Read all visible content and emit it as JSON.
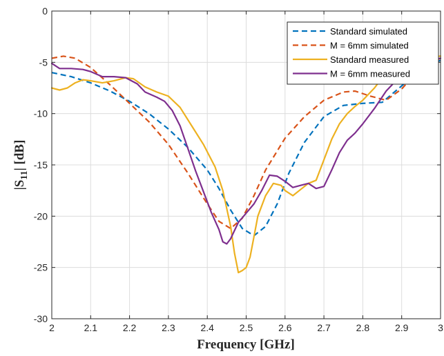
{
  "chart_data": {
    "type": "line",
    "xlabel": "Frequency [GHz]",
    "ylabel_main": "|S",
    "ylabel_sub": "11",
    "ylabel_tail": "| [dB]",
    "xlim": [
      2,
      3
    ],
    "ylim": [
      -30,
      0
    ],
    "xticks": [
      2,
      2.1,
      2.2,
      2.3,
      2.4,
      2.5,
      2.6,
      2.7,
      2.8,
      2.9,
      3
    ],
    "yticks": [
      0,
      -5,
      -10,
      -15,
      -20,
      -25,
      -30
    ],
    "grid": true,
    "legend_position": "top-right",
    "series": [
      {
        "name": "Standard simulated",
        "color": "#0072BD",
        "style": "dashed",
        "x": [
          2.0,
          2.05,
          2.1,
          2.15,
          2.2,
          2.25,
          2.3,
          2.35,
          2.4,
          2.43,
          2.46,
          2.49,
          2.52,
          2.55,
          2.58,
          2.61,
          2.65,
          2.7,
          2.75,
          2.8,
          2.85,
          2.9,
          2.95,
          3.0
        ],
        "y": [
          -6.0,
          -6.4,
          -7.0,
          -7.8,
          -8.8,
          -10.0,
          -11.5,
          -13.3,
          -15.5,
          -17.3,
          -19.4,
          -21.2,
          -21.9,
          -21.0,
          -18.8,
          -15.8,
          -12.8,
          -10.3,
          -9.2,
          -9.0,
          -8.9,
          -7.3,
          -5.7,
          -4.8
        ]
      },
      {
        "name": "M = 6mm simulated",
        "color": "#D95319",
        "style": "dashed",
        "x": [
          2.0,
          2.03,
          2.06,
          2.1,
          2.15,
          2.2,
          2.25,
          2.3,
          2.35,
          2.4,
          2.43,
          2.46,
          2.49,
          2.52,
          2.55,
          2.6,
          2.65,
          2.7,
          2.75,
          2.78,
          2.82,
          2.86,
          2.9,
          2.95,
          3.0
        ],
        "y": [
          -4.6,
          -4.4,
          -4.6,
          -5.5,
          -7.2,
          -9.0,
          -10.8,
          -13.0,
          -15.8,
          -18.8,
          -20.5,
          -21.2,
          -20.2,
          -18.0,
          -15.5,
          -12.4,
          -10.3,
          -8.7,
          -7.9,
          -7.8,
          -8.3,
          -8.7,
          -7.6,
          -5.5,
          -4.6
        ]
      },
      {
        "name": "Standard measured",
        "color": "#EDB120",
        "style": "solid",
        "x": [
          2.0,
          2.02,
          2.04,
          2.06,
          2.08,
          2.1,
          2.13,
          2.16,
          2.19,
          2.21,
          2.24,
          2.27,
          2.3,
          2.33,
          2.36,
          2.39,
          2.42,
          2.44,
          2.46,
          2.47,
          2.48,
          2.49,
          2.5,
          2.51,
          2.52,
          2.53,
          2.55,
          2.57,
          2.59,
          2.6,
          2.62,
          2.64,
          2.66,
          2.68,
          2.7,
          2.72,
          2.74,
          2.76,
          2.78,
          2.8,
          2.83,
          2.86,
          2.9,
          2.95,
          3.0
        ],
        "y": [
          -7.5,
          -7.7,
          -7.5,
          -7.0,
          -6.7,
          -6.8,
          -7.0,
          -6.8,
          -6.5,
          -6.6,
          -7.4,
          -7.9,
          -8.3,
          -9.4,
          -11.2,
          -13.0,
          -15.2,
          -17.5,
          -21.0,
          -23.6,
          -25.5,
          -25.3,
          -25.0,
          -24.0,
          -22.0,
          -20.0,
          -18.0,
          -16.8,
          -17.0,
          -17.5,
          -18.0,
          -17.4,
          -16.8,
          -16.5,
          -14.5,
          -12.5,
          -11.0,
          -10.0,
          -9.3,
          -8.7,
          -7.5,
          -6.0,
          -5.0,
          -4.5,
          -4.4
        ]
      },
      {
        "name": "M = 6mm measured",
        "color": "#7E2F8E",
        "style": "solid",
        "x": [
          2.0,
          2.02,
          2.05,
          2.08,
          2.1,
          2.13,
          2.16,
          2.19,
          2.22,
          2.24,
          2.27,
          2.29,
          2.31,
          2.33,
          2.35,
          2.37,
          2.39,
          2.41,
          2.43,
          2.44,
          2.45,
          2.46,
          2.47,
          2.48,
          2.5,
          2.52,
          2.54,
          2.56,
          2.58,
          2.6,
          2.62,
          2.64,
          2.66,
          2.68,
          2.7,
          2.72,
          2.74,
          2.76,
          2.78,
          2.8,
          2.83,
          2.86,
          2.9,
          2.95,
          3.0
        ],
        "y": [
          -5.1,
          -5.6,
          -5.6,
          -5.7,
          -5.9,
          -6.4,
          -6.4,
          -6.5,
          -7.1,
          -7.9,
          -8.4,
          -8.8,
          -9.7,
          -11.2,
          -13.4,
          -15.6,
          -17.6,
          -19.6,
          -21.3,
          -22.5,
          -22.7,
          -22.2,
          -21.4,
          -20.6,
          -19.7,
          -18.8,
          -17.5,
          -16.0,
          -16.1,
          -16.6,
          -17.2,
          -17.0,
          -16.8,
          -17.3,
          -17.1,
          -15.5,
          -13.8,
          -12.6,
          -11.9,
          -11.0,
          -9.5,
          -7.8,
          -6.2,
          -5.0,
          -4.6
        ]
      }
    ]
  }
}
